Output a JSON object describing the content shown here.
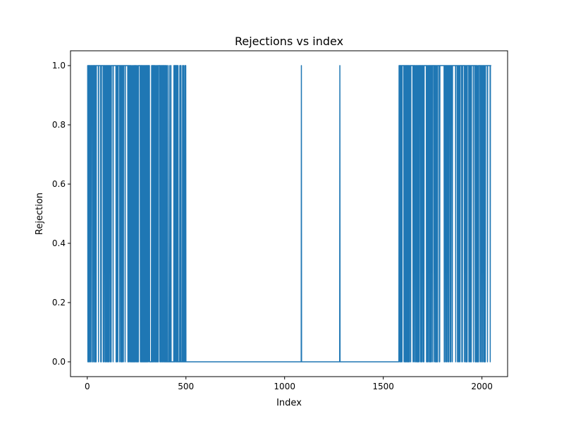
{
  "chart_data": {
    "type": "line",
    "title": "Rejections vs index",
    "xlabel": "Index",
    "ylabel": "Rejection",
    "xlim": [
      -85,
      2130
    ],
    "ylim": [
      -0.05,
      1.05
    ],
    "x_ticks": [
      0,
      500,
      1000,
      1500,
      2000
    ],
    "y_ticks": [
      0.0,
      0.2,
      0.4,
      0.6,
      0.8,
      1.0
    ],
    "x_tick_labels": [
      "0",
      "500",
      "1000",
      "1500",
      "2000"
    ],
    "y_tick_labels": [
      "0.0",
      "0.2",
      "0.4",
      "0.6",
      "0.8",
      "1.0"
    ],
    "grid": false,
    "series": [
      {
        "name": "rejections",
        "color": "#1f77b4",
        "x_range": [
          0,
          2047
        ],
        "rejection_segments": [
          {
            "start": 0,
            "end": 220,
            "density": 0.75
          },
          {
            "start": 220,
            "end": 345,
            "density": 0.55
          },
          {
            "start": 345,
            "end": 500,
            "density": 0.35
          },
          {
            "start": 1580,
            "end": 2047,
            "density": 0.75
          }
        ],
        "isolated_rejections": [
          1085,
          1280
        ]
      }
    ]
  }
}
